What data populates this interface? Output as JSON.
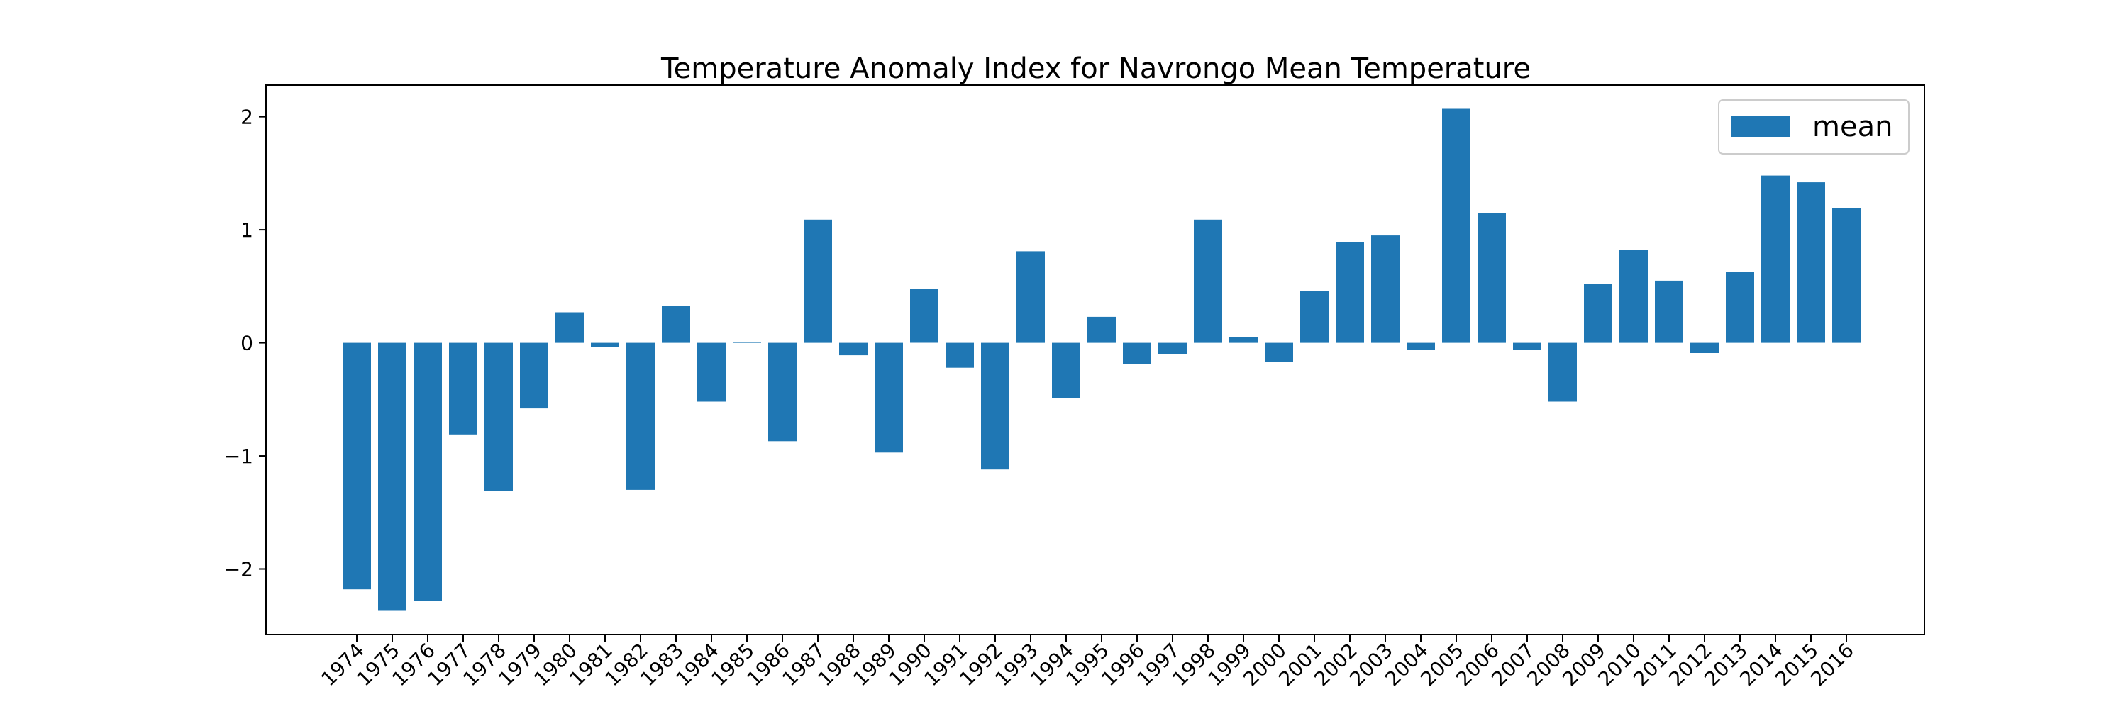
{
  "chart_data": {
    "type": "bar",
    "title": "Temperature Anomaly Index for Navrongo Mean Temperature",
    "xlabel": "",
    "ylabel": "",
    "categories": [
      "1974",
      "1975",
      "1976",
      "1977",
      "1978",
      "1979",
      "1980",
      "1981",
      "1982",
      "1983",
      "1984",
      "1985",
      "1986",
      "1987",
      "1988",
      "1989",
      "1990",
      "1991",
      "1992",
      "1993",
      "1994",
      "1995",
      "1996",
      "1997",
      "1998",
      "1999",
      "2000",
      "2001",
      "2002",
      "2003",
      "2004",
      "2005",
      "2006",
      "2007",
      "2008",
      "2009",
      "2010",
      "2011",
      "2012",
      "2013",
      "2014",
      "2015",
      "2016"
    ],
    "series": [
      {
        "name": "mean",
        "color": "#1f77b4",
        "values": [
          -2.18,
          -2.37,
          -2.28,
          -0.81,
          -1.31,
          -0.58,
          0.27,
          -0.04,
          -1.3,
          0.33,
          -0.52,
          0.01,
          -0.87,
          1.09,
          -0.11,
          -0.97,
          0.48,
          -0.22,
          -1.12,
          0.81,
          -0.49,
          0.23,
          -0.19,
          -0.1,
          1.09,
          0.05,
          -0.17,
          0.46,
          0.89,
          0.95,
          -0.06,
          2.07,
          1.15,
          -0.06,
          -0.52,
          0.52,
          0.82,
          0.55,
          -0.09,
          0.63,
          1.48,
          1.42,
          1.19
        ]
      }
    ],
    "ylim": [
      -2.58,
      2.28
    ],
    "yticks": [
      -2,
      -1,
      0,
      1,
      2
    ],
    "ytick_labels": [
      "−2",
      "−1",
      "0",
      "1",
      "2"
    ],
    "grid": false,
    "legend_position": "top-right"
  }
}
